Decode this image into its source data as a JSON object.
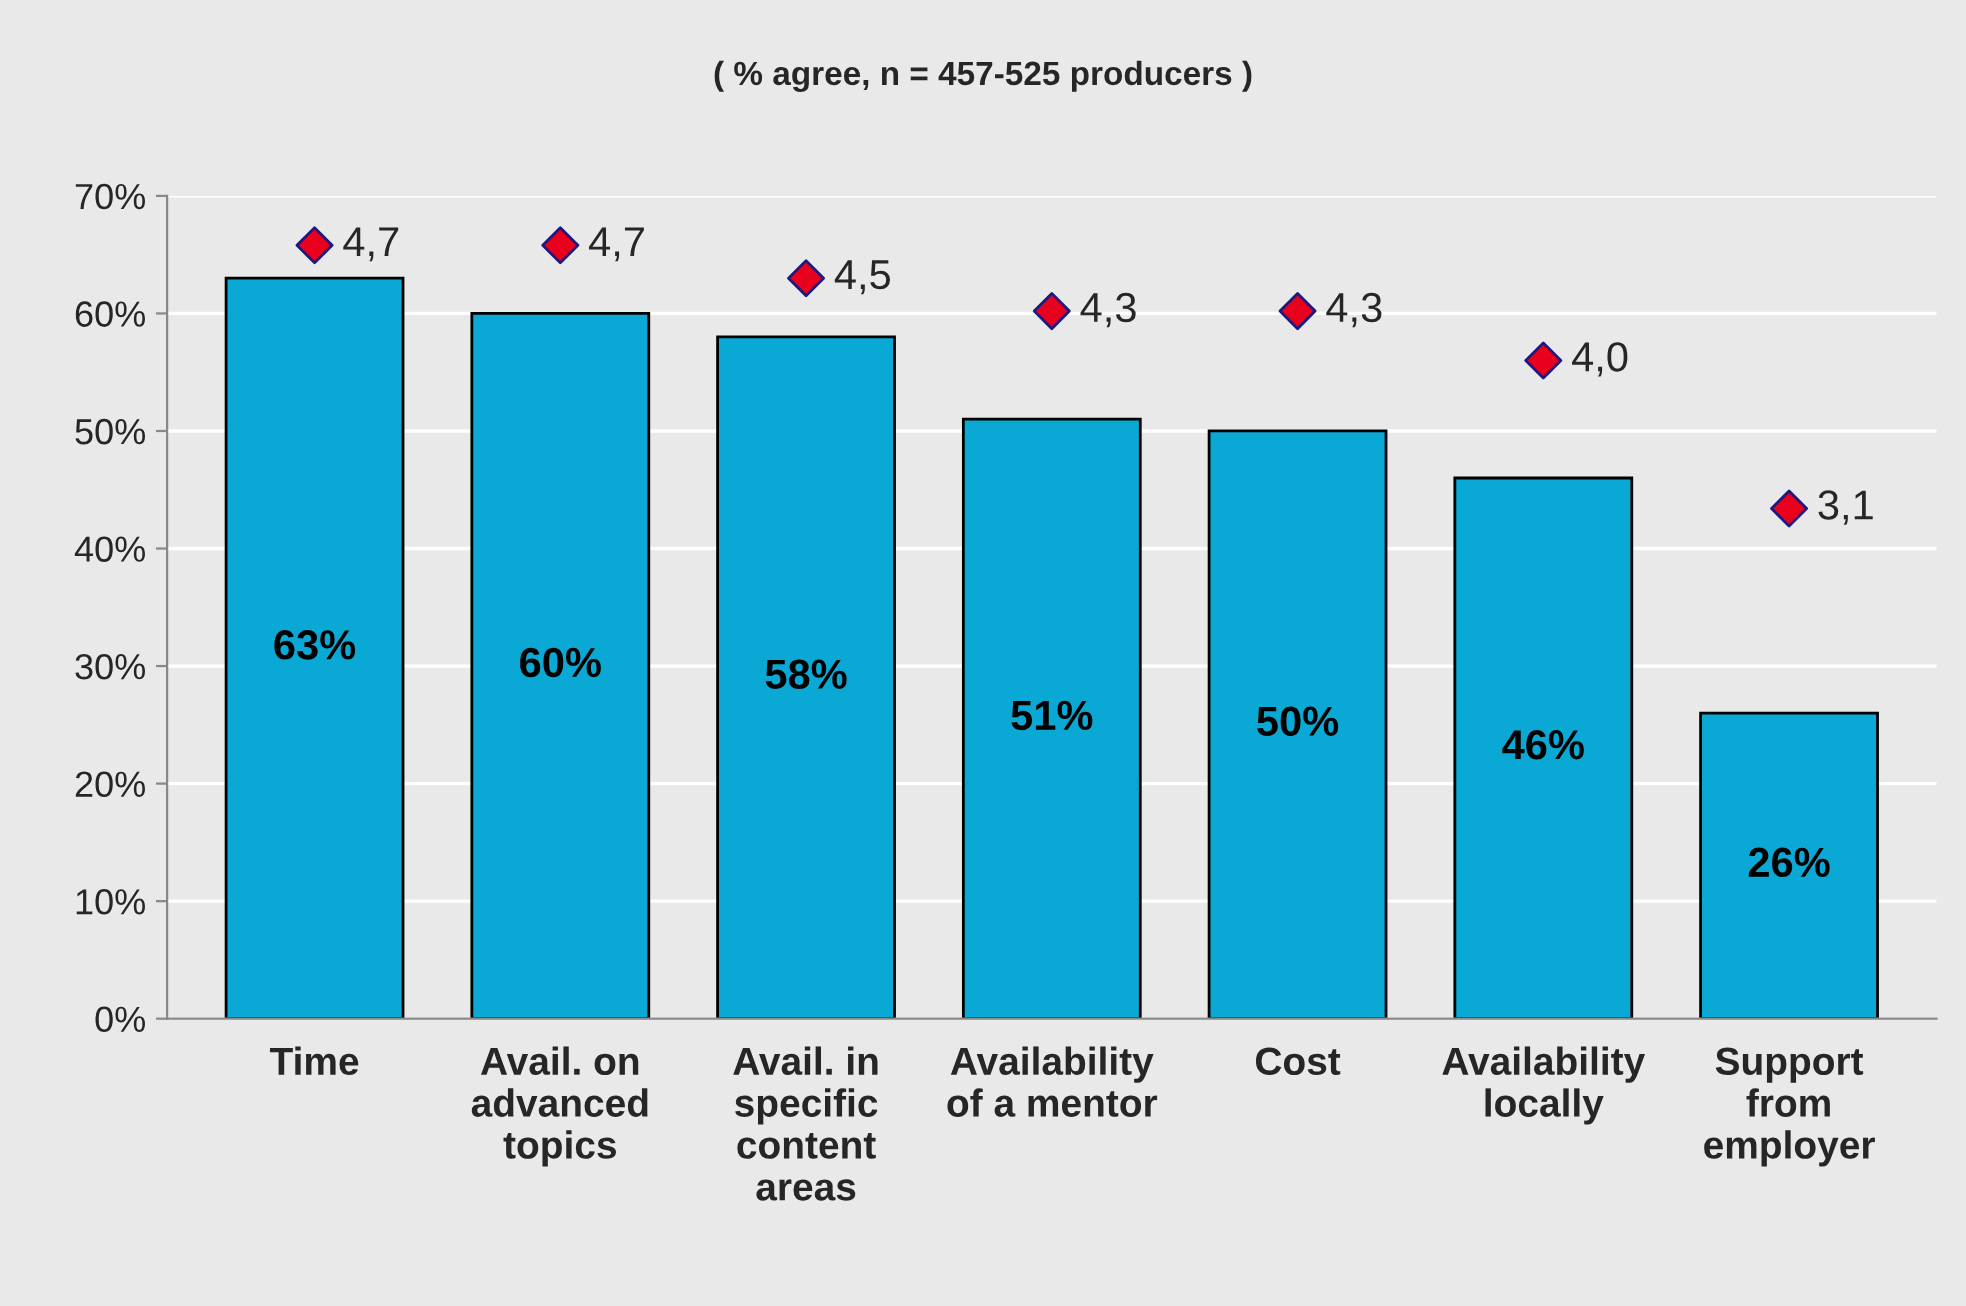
{
  "chart_data": {
    "type": "bar",
    "title": "( % agree, n = 457-525 producers )",
    "categories": [
      "Time",
      "Avail. on\nadvanced\ntopics",
      "Avail. in\nspecific\ncontent\nareas",
      "Availability\nof a mentor",
      "Cost",
      "Availability\nlocally",
      "Support\nfrom\nemployer"
    ],
    "series": [
      {
        "color": "#0aa8d4",
        "values": [
          63,
          60,
          58,
          51,
          50,
          46,
          26
        ],
        "value_labels": [
          "63%",
          "60%",
          "58%",
          "51%",
          "50%",
          "46%",
          "26%"
        ]
      },
      {
        "type": "scatter",
        "axis": "y2",
        "color": "#e8001c",
        "marker": "diamond",
        "values": [
          4.7,
          4.7,
          4.5,
          4.3,
          4.3,
          4.0,
          3.1
        ],
        "value_labels": [
          "4,7",
          "4,7",
          "4,5",
          "4,3",
          "4,3",
          "4,0",
          "3,1"
        ]
      }
    ],
    "ylim": [
      0,
      70
    ],
    "yticks": [
      {
        "value": 0,
        "label": "0%"
      },
      {
        "value": 10,
        "label": "10%"
      },
      {
        "value": 20,
        "label": "20%"
      },
      {
        "value": 30,
        "label": "30%"
      },
      {
        "value": 40,
        "label": "40%"
      },
      {
        "value": 50,
        "label": "50%"
      },
      {
        "value": 60,
        "label": "60%"
      },
      {
        "value": 70,
        "label": "70%"
      }
    ],
    "y2lim": [
      0,
      5
    ],
    "grid": "y"
  }
}
